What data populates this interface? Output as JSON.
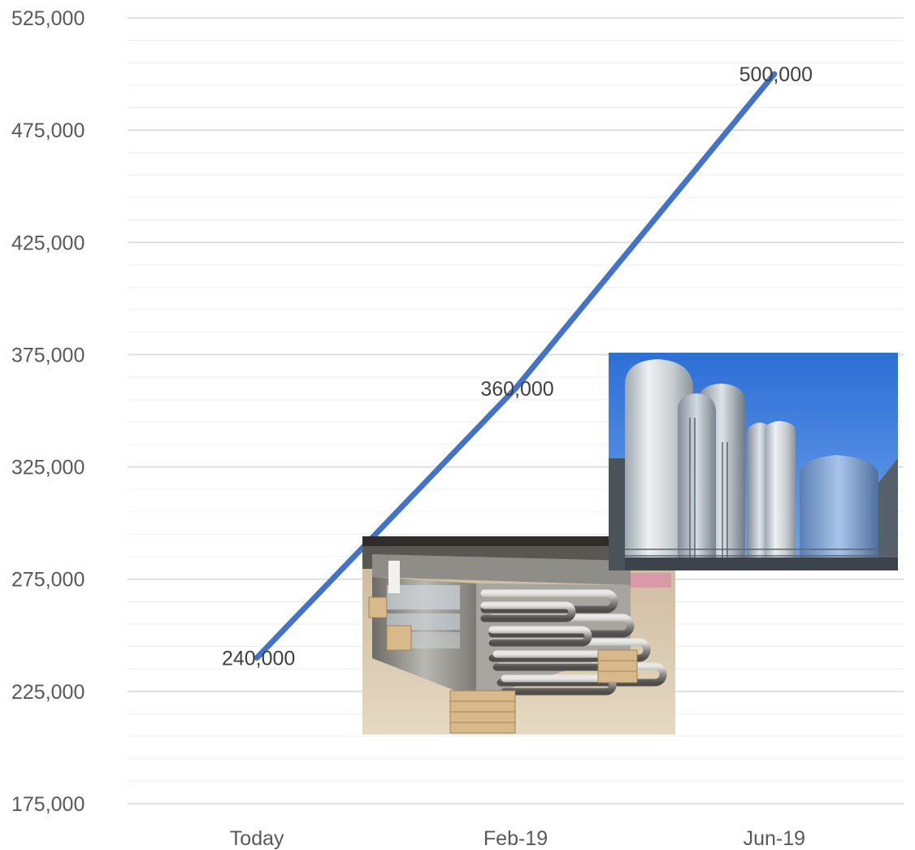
{
  "chart_data": {
    "type": "line",
    "title": "",
    "xlabel": "",
    "ylabel": "",
    "categories": [
      "Today",
      "Feb-19",
      "Jun-19"
    ],
    "series": [
      {
        "values": [
          240000,
          360000,
          500000
        ],
        "color": "#4472C4"
      }
    ],
    "data_labels": [
      "240,000",
      "360,000",
      "500,000"
    ],
    "ylim": [
      175000,
      525000
    ],
    "y_ticks": [
      175000,
      225000,
      275000,
      325000,
      375000,
      425000,
      475000,
      525000
    ],
    "y_tick_labels": [
      "175,000",
      "225,000",
      "275,000",
      "325,000",
      "375,000",
      "425,000",
      "475,000",
      "525,000"
    ],
    "grid": {
      "major": true,
      "minor": true,
      "major_color": "#d9d9d9",
      "minor_color": "#f0f0f0"
    },
    "legend": "none"
  },
  "images": [
    {
      "name": "heat-exchanger-photo",
      "depicts": "stainless steel tube bundles on wooden blocks"
    },
    {
      "name": "storage-silos-photo",
      "depicts": "tall stainless steel silos under blue sky"
    }
  ]
}
